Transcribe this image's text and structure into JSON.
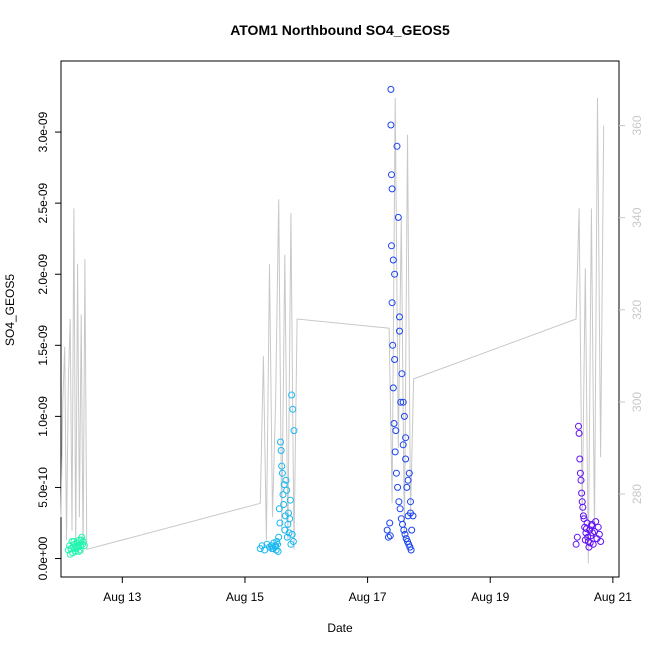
{
  "chart_data": {
    "type": "scatter",
    "title": "ATOM1 Northbound SO4_GEOS5",
    "xlabel": "Date",
    "ylabel": "SO4_GEOS5",
    "x_ticks": [
      "Aug 13",
      "Aug 15",
      "Aug 17",
      "Aug 19",
      "Aug 21"
    ],
    "y_ticks": [
      "0.0e+00",
      "5.0e-10",
      "1.0e-09",
      "1.5e-09",
      "2.0e-09",
      "2.5e-09",
      "3.0e-09"
    ],
    "y2_ticks": [
      "280",
      "300",
      "320",
      "340",
      "360"
    ],
    "xlim_days": [
      12.0,
      21.1
    ],
    "ylim": [
      -1.3e-10,
      3.5e-09
    ],
    "y2lim": [
      262,
      374
    ],
    "grid": false,
    "colors": {
      "secondary_line": "#c8c8c8",
      "secondary_axis": "#c8c8c8"
    },
    "series": [
      {
        "group": "Aug 12",
        "color": "#22f5b0",
        "x": [
          12.12,
          12.14,
          12.16,
          12.18,
          12.2,
          12.22,
          12.24,
          12.26,
          12.28,
          12.3,
          12.32,
          12.34,
          12.36,
          12.38,
          12.15,
          12.19,
          12.23,
          12.27,
          12.31,
          12.35,
          12.33,
          12.29,
          12.25,
          12.21
        ],
        "y": [
          6e-11,
          9e-11,
          7e-11,
          1.2e-10,
          8e-11,
          1e-10,
          5e-11,
          1.1e-10,
          8e-11,
          1.3e-10,
          9e-11,
          1.5e-10,
          1.2e-10,
          9e-11,
          3e-11,
          4e-11,
          7e-11,
          9e-11,
          6e-11,
          1e-10,
          1.3e-10,
          5e-11,
          8e-11,
          1.2e-10
        ]
      },
      {
        "group": "Aug 15",
        "color": "#1ab8f0",
        "x": [
          15.25,
          15.28,
          15.32,
          15.36,
          15.4,
          15.44,
          15.47,
          15.5,
          15.52,
          15.54,
          15.56,
          15.58,
          15.6,
          15.62,
          15.64,
          15.66,
          15.68,
          15.7,
          15.72,
          15.74,
          15.76,
          15.78,
          15.8,
          15.57,
          15.59,
          15.61,
          15.63,
          15.65,
          15.67,
          15.69,
          15.71,
          15.73,
          15.75,
          15.77,
          15.79,
          15.55,
          15.53,
          15.51,
          15.49,
          15.46,
          15.43
        ],
        "y": [
          7e-11,
          9e-11,
          6e-11,
          1e-10,
          8e-11,
          7e-11,
          1.1e-10,
          9e-11,
          1.2e-10,
          5e-11,
          3.5e-10,
          8.2e-10,
          6.5e-10,
          4.5e-10,
          5.2e-10,
          3e-10,
          4.8e-10,
          2.4e-10,
          1.8e-10,
          4.1e-10,
          1.15e-09,
          1.05e-09,
          9e-10,
          2.5e-10,
          7.6e-10,
          6e-10,
          3.8e-10,
          2e-10,
          5.5e-10,
          1.5e-10,
          3.2e-10,
          2.8e-10,
          1e-10,
          1.7e-10,
          1.2e-10,
          1.5e-10,
          1e-10,
          6e-11,
          8e-11,
          7e-11,
          9e-11
        ]
      },
      {
        "group": "Aug 17",
        "color": "#1a44f0",
        "x": [
          17.32,
          17.34,
          17.36,
          17.38,
          17.4,
          17.42,
          17.44,
          17.46,
          17.48,
          17.5,
          17.52,
          17.54,
          17.56,
          17.58,
          17.6,
          17.62,
          17.64,
          17.66,
          17.68,
          17.7,
          17.72,
          17.74,
          17.38,
          17.39,
          17.4,
          17.41,
          17.42,
          17.43,
          17.45,
          17.47,
          17.49,
          17.51,
          17.53,
          17.55,
          17.57,
          17.59,
          17.61,
          17.63,
          17.65,
          17.67,
          17.69,
          17.71,
          17.37,
          17.39,
          17.44,
          17.52,
          17.58,
          17.62,
          17.66,
          17.7
        ],
        "y": [
          2e-10,
          1.5e-10,
          2.5e-10,
          3.3e-09,
          2.6e-09,
          2.1e-09,
          1.4e-09,
          9e-10,
          2.9e-09,
          2.4e-09,
          1.7e-09,
          1.1e-09,
          1.3e-09,
          8e-10,
          1e-09,
          7e-10,
          5e-10,
          3e-10,
          6e-10,
          4e-10,
          2e-10,
          3e-10,
          3.05e-09,
          2.2e-09,
          1.8e-09,
          1.5e-09,
          1.2e-09,
          9.5e-10,
          7.5e-10,
          6e-10,
          5e-10,
          4e-10,
          3.5e-10,
          2.8e-10,
          2.4e-10,
          2e-10,
          1.7e-10,
          1.4e-10,
          1.2e-10,
          1e-10,
          8e-11,
          6e-11,
          1.6e-10,
          2.7e-09,
          2e-09,
          1.6e-09,
          1.1e-09,
          8.5e-10,
          5.5e-10,
          3.2e-10
        ]
      },
      {
        "group": "Aug 20",
        "color": "#6010f5",
        "x": [
          20.4,
          20.42,
          20.44,
          20.46,
          20.48,
          20.5,
          20.52,
          20.54,
          20.56,
          20.58,
          20.6,
          20.62,
          20.64,
          20.66,
          20.68,
          20.7,
          20.72,
          20.74,
          20.76,
          20.78,
          20.8,
          20.45,
          20.47,
          20.49,
          20.51,
          20.53,
          20.55,
          20.57,
          20.59,
          20.61,
          20.63,
          20.65,
          20.67
        ],
        "y": [
          1e-10,
          1.5e-10,
          9.3e-10,
          7e-10,
          5.5e-10,
          4e-10,
          3e-10,
          2.2e-10,
          1.8e-10,
          2.5e-10,
          1.2e-10,
          2e-10,
          1.6e-10,
          2.4e-10,
          1e-10,
          1.9e-10,
          2.6e-10,
          1.4e-10,
          2.2e-10,
          1.7e-10,
          1.2e-10,
          8.8e-10,
          6e-10,
          4.6e-10,
          3.6e-10,
          2.8e-10,
          1.3e-10,
          2.1e-10,
          1.5e-10,
          8e-11,
          1.1e-10,
          2.3e-10,
          1.8e-10
        ]
      }
    ],
    "secondary_series": {
      "color": "#c8c8c8",
      "x": [
        12.0,
        12.03,
        12.06,
        12.09,
        12.12,
        12.15,
        12.18,
        12.21,
        12.24,
        12.27,
        12.3,
        12.33,
        12.36,
        12.39,
        12.42,
        15.25,
        15.3,
        15.35,
        15.4,
        15.45,
        15.5,
        15.55,
        15.6,
        15.65,
        15.7,
        15.75,
        15.8,
        15.85,
        17.35,
        17.4,
        17.45,
        17.5,
        17.55,
        17.6,
        17.65,
        17.7,
        17.75,
        20.4,
        20.45,
        20.5,
        20.55,
        20.6,
        20.65,
        20.7,
        20.75,
        20.8,
        20.85
      ],
      "y": [
        275,
        300,
        312,
        270,
        305,
        318,
        272,
        342,
        268,
        330,
        275,
        319,
        267,
        331,
        268,
        278,
        310,
        270,
        330,
        275,
        300,
        344,
        272,
        332,
        270,
        341,
        268,
        318,
        316,
        278,
        366,
        290,
        340,
        270,
        358,
        275,
        305,
        318,
        342,
        275,
        329,
        265,
        342,
        272,
        366,
        288,
        360
      ]
    }
  }
}
